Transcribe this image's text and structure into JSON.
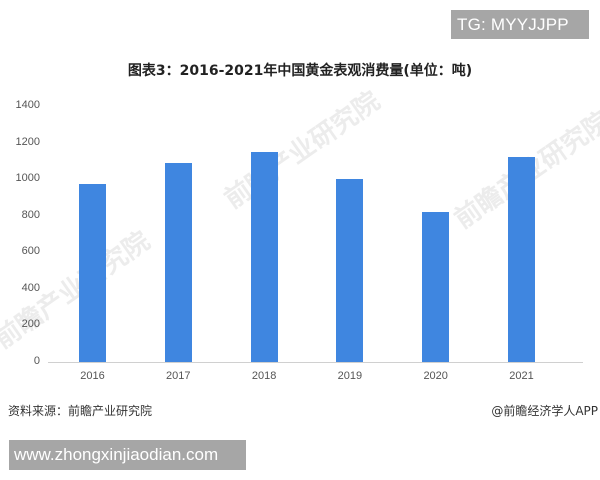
{
  "banners": {
    "top": "TG: MYYJJPP",
    "bottom": "www.zhongxinjiaodian.com"
  },
  "footer": {
    "source": "资料来源：前瞻产业研究院",
    "credit": "@前瞻经济学人APP"
  },
  "watermarks": [
    "前瞻产业研究院",
    "前瞻产业研究院",
    "前瞻产业研究院"
  ],
  "colors": {
    "bar": "#3f86e0",
    "banner_bg": "#a6a6a6",
    "axis": "#d0d0d0"
  },
  "chart_data": {
    "type": "bar",
    "title": "图表3：2016-2021年中国黄金表观消费量(单位：吨)",
    "xlabel": "",
    "ylabel": "",
    "categories": [
      "2016",
      "2017",
      "2018",
      "2019",
      "2020",
      "2021"
    ],
    "values": [
      975,
      1089,
      1151,
      1003,
      821,
      1121
    ],
    "ylim": [
      0,
      1400
    ],
    "yticks": [
      "0",
      "200",
      "400",
      "600",
      "800",
      "1000",
      "1200",
      "1400"
    ],
    "grid": false,
    "legend": "none",
    "source": "资料来源：前瞻产业研究院"
  }
}
